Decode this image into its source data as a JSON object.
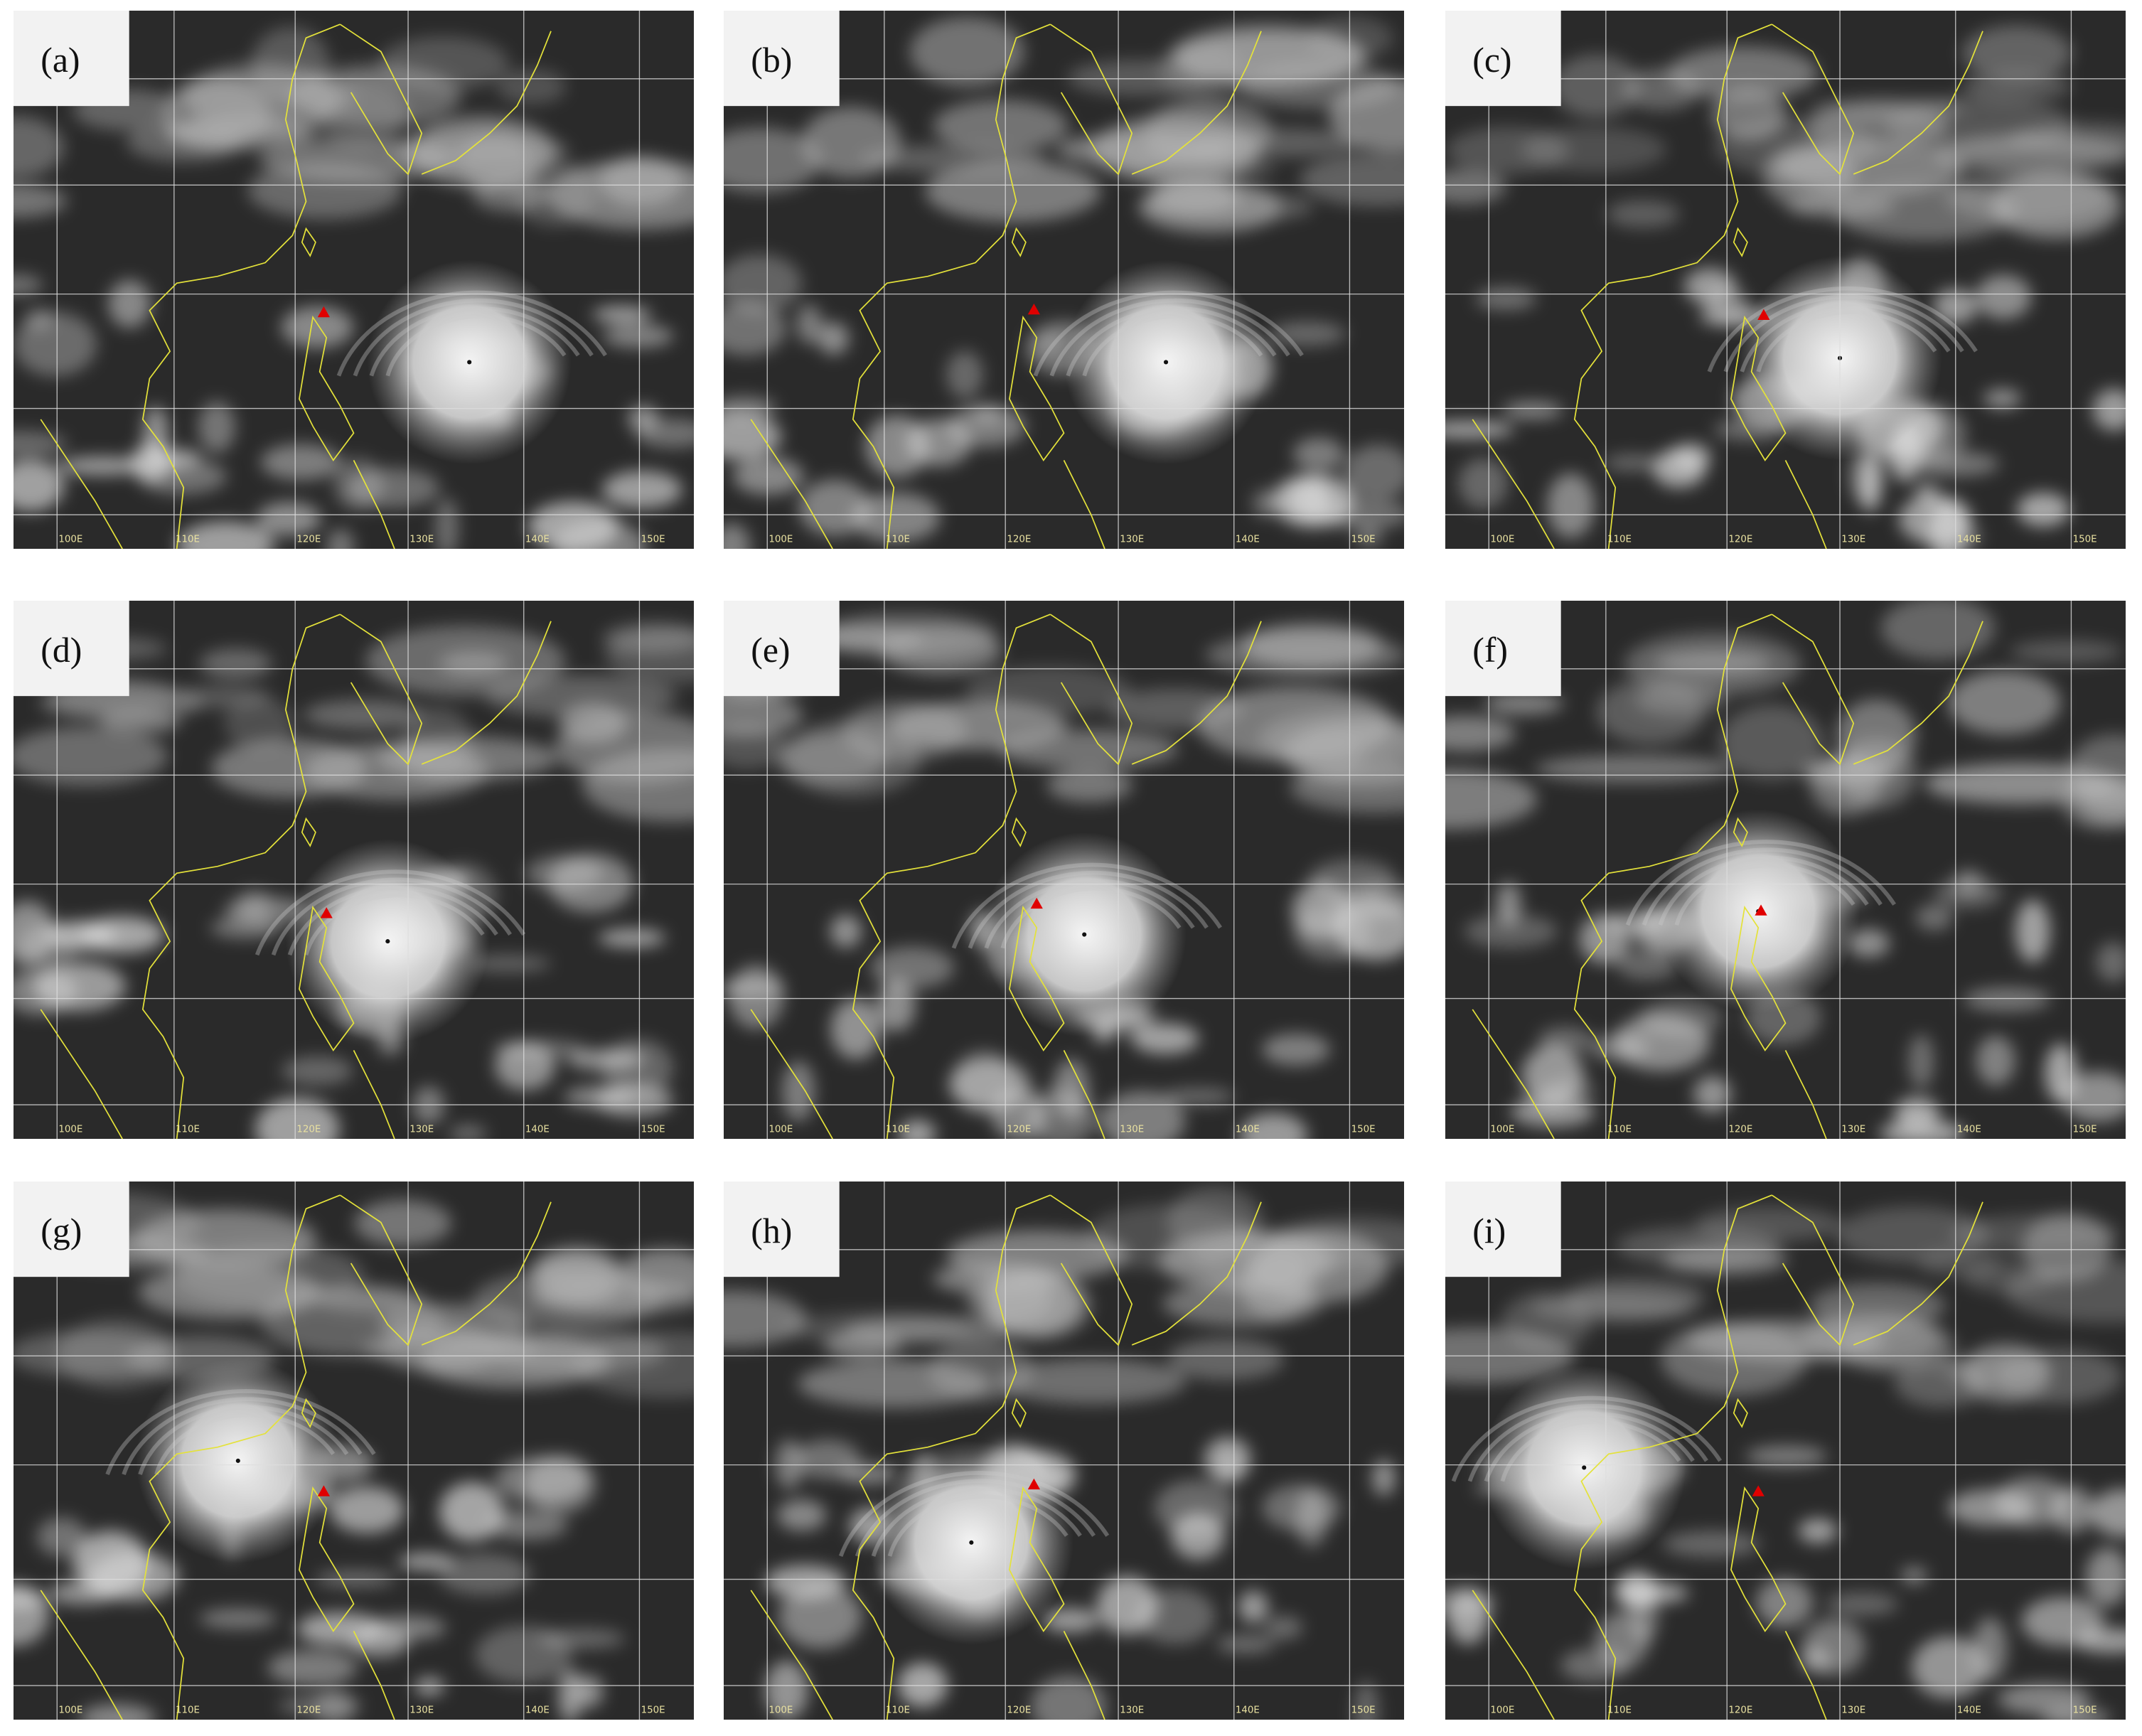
{
  "panels": [
    {
      "label": "(a)"
    },
    {
      "label": "(b)"
    },
    {
      "label": "(c)"
    },
    {
      "label": "(d)"
    },
    {
      "label": "(e)"
    },
    {
      "label": "(f)"
    },
    {
      "label": "(g)"
    },
    {
      "label": "(h)"
    },
    {
      "label": "(i)"
    }
  ],
  "longitude_labels": [
    "100E",
    "110E",
    "120E",
    "130E",
    "140E",
    "150E"
  ]
}
